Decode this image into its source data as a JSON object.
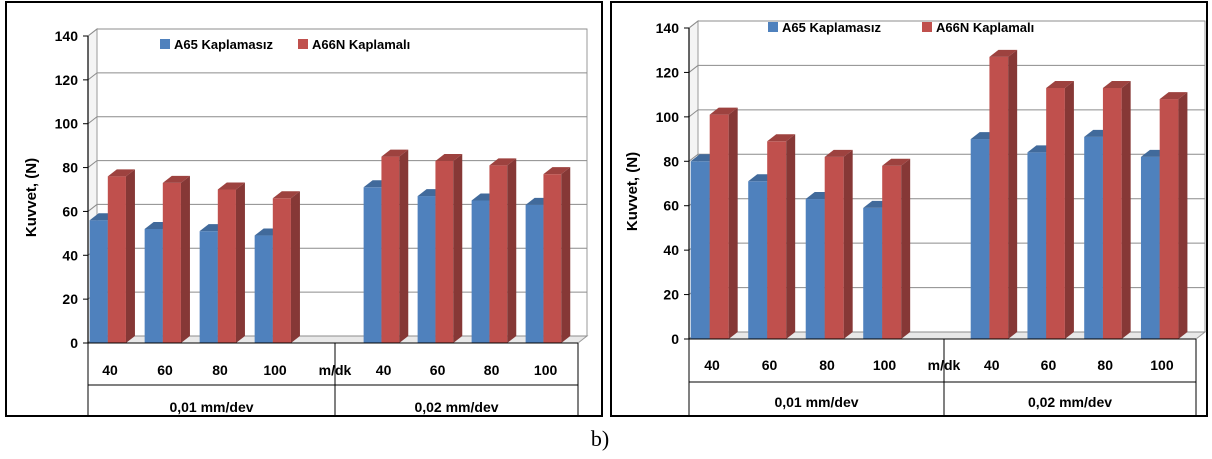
{
  "captions": {
    "b": "b)"
  },
  "chart_data": [
    {
      "type": "bar",
      "title": "",
      "ylabel": "Kuvvet, (N)",
      "xlabel": "",
      "ylim": [
        0,
        140
      ],
      "yticks": [
        0,
        20,
        40,
        60,
        80,
        100,
        120,
        140
      ],
      "grid": true,
      "legend_position": "top",
      "gap_label": "m/dk",
      "groups": [
        {
          "label": "0,01 mm/dev",
          "categories": [
            "40",
            "60",
            "80",
            "100"
          ]
        },
        {
          "label": "0,02 mm/dev",
          "categories": [
            "40",
            "60",
            "80",
            "100"
          ]
        }
      ],
      "series": [
        {
          "name": "A65 Kaplamasız",
          "color": "#4f81bd",
          "values": [
            56,
            52,
            51,
            49,
            71,
            67,
            65,
            63
          ]
        },
        {
          "name": "A66N Kaplamalı",
          "color": "#c0504d",
          "values": [
            76,
            73,
            70,
            66,
            85,
            83,
            81,
            77
          ]
        }
      ]
    },
    {
      "type": "bar",
      "title": "",
      "ylabel": "Kuvvet, (N)",
      "xlabel": "",
      "ylim": [
        0,
        140
      ],
      "yticks": [
        0,
        20,
        40,
        60,
        80,
        100,
        120,
        140
      ],
      "grid": true,
      "legend_position": "top",
      "gap_label": "m/dk",
      "groups": [
        {
          "label": "0,01 mm/dev",
          "categories": [
            "40",
            "60",
            "80",
            "100"
          ]
        },
        {
          "label": "0,02 mm/dev",
          "categories": [
            "40",
            "60",
            "80",
            "100"
          ]
        }
      ],
      "series": [
        {
          "name": "A65 Kaplamasız",
          "color": "#4f81bd",
          "values": [
            80,
            71,
            63,
            59,
            90,
            84,
            91,
            82
          ]
        },
        {
          "name": "A66N Kaplamalı",
          "color": "#c0504d",
          "values": [
            101,
            89,
            82,
            78,
            127,
            113,
            113,
            108
          ]
        }
      ]
    }
  ]
}
